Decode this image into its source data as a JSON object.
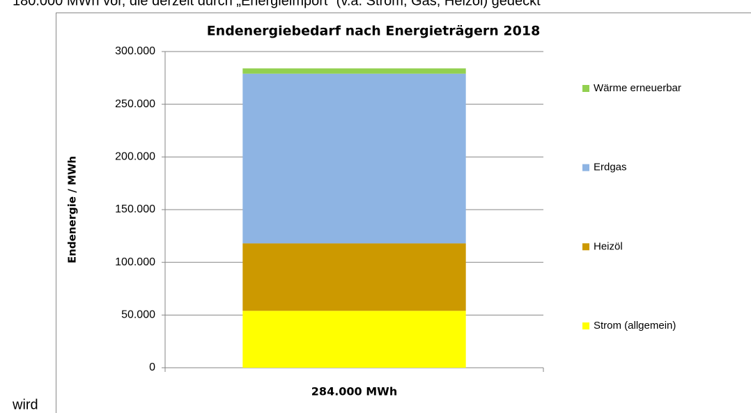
{
  "document": {
    "text_top": "180.000 MWh vor, die derzeit durch „Energieimport“ (v.a. Strom, Gas, Heizöl) gedeckt",
    "text_bottom": "wird"
  },
  "chart_data": {
    "type": "stacked_bar",
    "title": "Endenergiebedarf nach Energieträgern 2018",
    "y_label": "Endenergie / MWh",
    "categories": [
      "284.000 MWh"
    ],
    "series": [
      {
        "name": "Strom (allgemein)",
        "color": "#ffff00",
        "values": [
          54000
        ]
      },
      {
        "name": "Heizöl",
        "color": "#cc9900",
        "values": [
          64000
        ]
      },
      {
        "name": "Erdgas",
        "color": "#8eb4e3",
        "values": [
          161000
        ]
      },
      {
        "name": "Wärme erneuerbar",
        "color": "#92d050",
        "values": [
          5000
        ]
      }
    ],
    "ylim": [
      0,
      300000
    ],
    "yticks": [
      0,
      {
        "value": 50000,
        "label": "50.000"
      },
      {
        "value": 100000,
        "label": "100.000"
      },
      {
        "value": 150000,
        "label": "150.000"
      },
      {
        "value": 200000,
        "label": "200.000"
      },
      {
        "value": 250000,
        "label": "250.000"
      },
      {
        "value": 300000,
        "label": "300.000"
      }
    ],
    "grid": true,
    "legend": "right"
  }
}
